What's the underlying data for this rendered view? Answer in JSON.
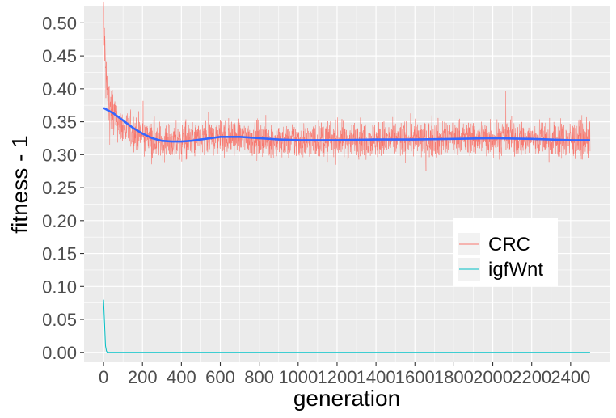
{
  "chart_data": {
    "type": "line",
    "title": "",
    "xlabel": "generation",
    "ylabel": "fitness - 1",
    "xlim": [
      -100,
      2600
    ],
    "ylim": [
      -0.015,
      0.525
    ],
    "x_ticks": [
      0,
      200,
      400,
      600,
      800,
      1000,
      1200,
      1400,
      1600,
      1800,
      2000,
      2200,
      2400
    ],
    "x_tick_labels": [
      "0",
      "200",
      "400",
      "600",
      "800",
      "1000",
      "1200",
      "1400",
      "1600",
      "1800",
      "2000",
      "2200",
      "2400"
    ],
    "y_ticks": [
      0.0,
      0.05,
      0.1,
      0.15,
      0.2,
      0.25,
      0.3,
      0.35,
      0.4,
      0.45,
      0.5
    ],
    "y_tick_labels": [
      "0.00",
      "0.05",
      "0.10",
      "0.15",
      "0.20",
      "0.25",
      "0.30",
      "0.35",
      "0.40",
      "0.45",
      "0.50"
    ],
    "grid": true,
    "legend_position": "right",
    "series": [
      {
        "name": "CRC",
        "color": "#F8766D",
        "x": [
          0,
          10,
          20,
          30,
          50,
          75,
          100,
          150,
          200,
          250,
          300,
          350,
          400,
          500,
          600,
          700,
          800,
          900,
          1000,
          1100,
          1200,
          1300,
          1400,
          1500,
          1600,
          1700,
          1800,
          1900,
          2000,
          2100,
          2200,
          2300,
          2400,
          2500
        ],
        "values": [
          0.51,
          0.43,
          0.39,
          0.375,
          0.36,
          0.35,
          0.34,
          0.335,
          0.33,
          0.325,
          0.32,
          0.32,
          0.32,
          0.322,
          0.328,
          0.327,
          0.325,
          0.322,
          0.322,
          0.322,
          0.323,
          0.323,
          0.323,
          0.323,
          0.324,
          0.324,
          0.325,
          0.326,
          0.326,
          0.325,
          0.324,
          0.323,
          0.322,
          0.322
        ],
        "noise_amplitude": 0.025
      },
      {
        "name": "igfWnt",
        "color": "#00BFC4",
        "x": [
          0,
          5,
          10,
          15,
          20,
          2500
        ],
        "values": [
          0.08,
          0.045,
          0.01,
          0.002,
          0.0,
          0.0
        ]
      },
      {
        "name": "",
        "color": "#3366FF",
        "x": [
          0,
          50,
          100,
          150,
          200,
          250,
          300,
          350,
          400,
          450,
          500,
          550,
          600,
          700,
          800,
          900,
          1000,
          1200,
          1400,
          1600,
          1800,
          2000,
          2200,
          2400,
          2500
        ],
        "values": [
          0.371,
          0.363,
          0.352,
          0.341,
          0.332,
          0.325,
          0.321,
          0.32,
          0.32,
          0.321,
          0.323,
          0.325,
          0.327,
          0.327,
          0.325,
          0.323,
          0.322,
          0.322,
          0.323,
          0.323,
          0.324,
          0.325,
          0.324,
          0.322,
          0.322
        ]
      }
    ],
    "legend": [
      {
        "name": "CRC",
        "color": "#F8766D"
      },
      {
        "name": "igfWnt",
        "color": "#00BFC4"
      }
    ]
  }
}
